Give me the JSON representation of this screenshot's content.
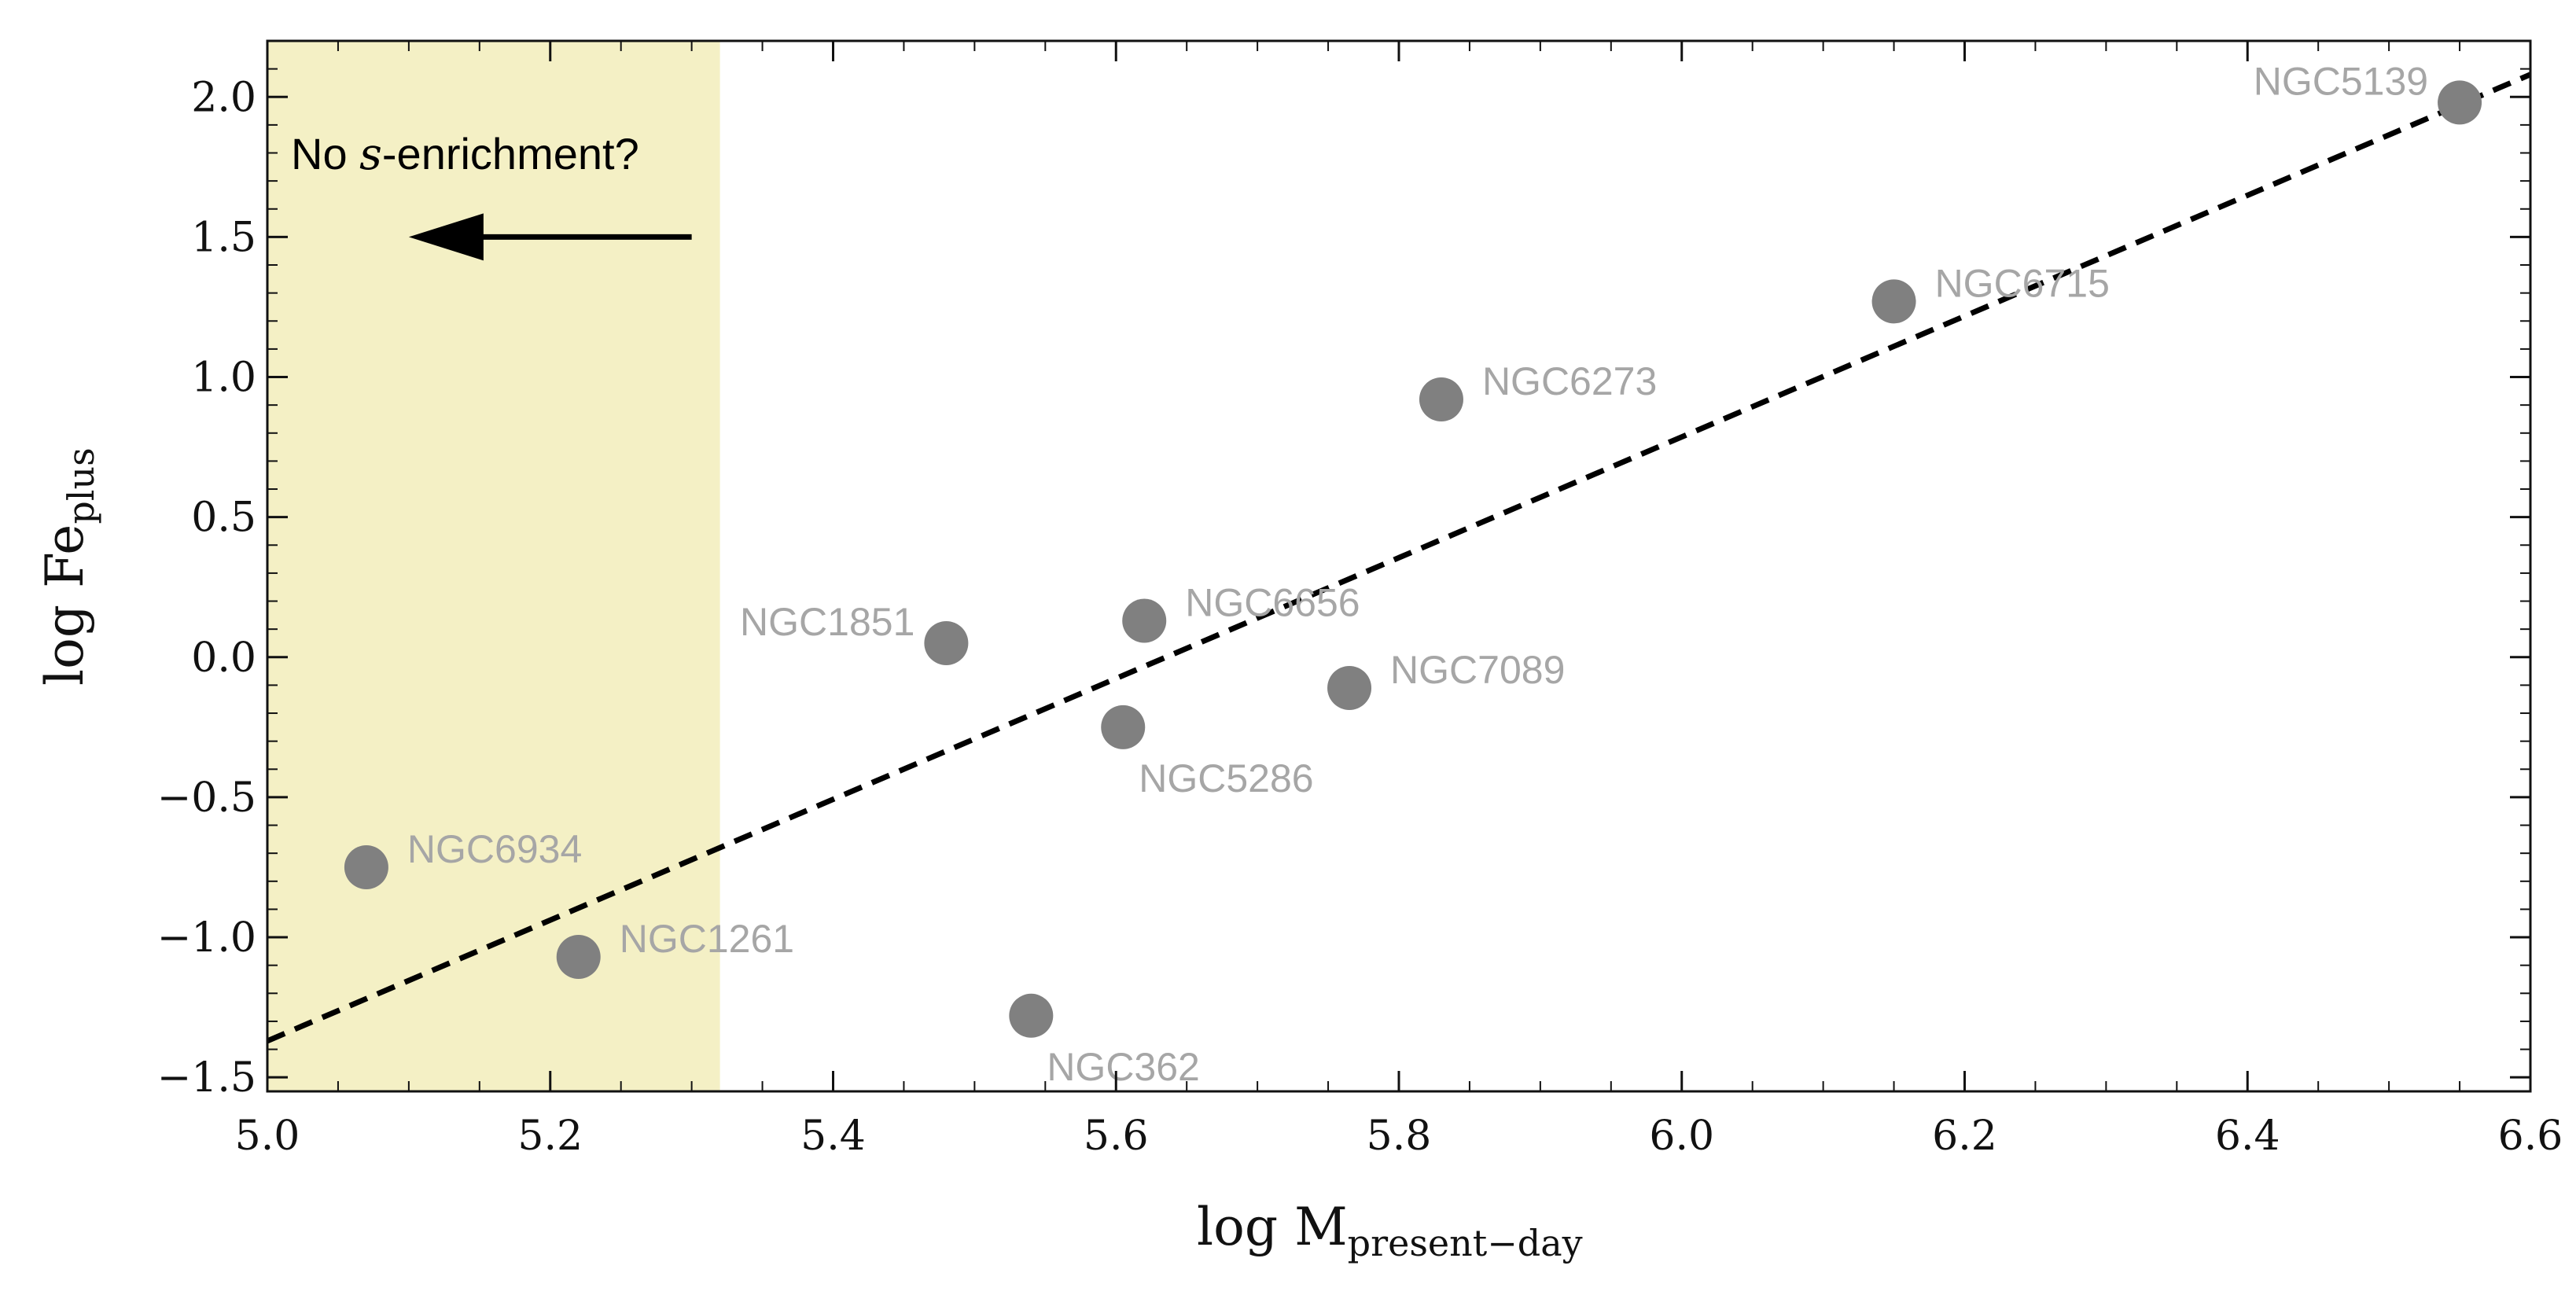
{
  "chart_data": {
    "type": "scatter",
    "title": "",
    "xlabel": {
      "main": "log M",
      "sub": "present−day"
    },
    "ylabel": {
      "main": "log Fe",
      "sub": "plus"
    },
    "xlim": [
      5.0,
      6.6
    ],
    "ylim": [
      -1.55,
      2.2
    ],
    "xticks": [
      5.0,
      5.2,
      5.4,
      5.6,
      5.8,
      6.0,
      6.2,
      6.4,
      6.6
    ],
    "yticks": [
      2.0,
      1.5,
      1.0,
      0.5,
      0.0,
      -0.5,
      -1.0,
      -1.5
    ],
    "xtick_labels": [
      "5.0",
      "5.2",
      "5.4",
      "5.6",
      "5.8",
      "6.0",
      "6.2",
      "6.4",
      "6.6"
    ],
    "ytick_labels": [
      "2.0",
      "1.5",
      "1.0",
      "0.5",
      "0.0",
      "−0.5",
      "−1.0",
      "−1.5"
    ],
    "points": [
      {
        "name": "NGC5139",
        "x": 6.55,
        "y": 1.98,
        "label_side": "left"
      },
      {
        "name": "NGC6715",
        "x": 6.15,
        "y": 1.27,
        "label_side": "right"
      },
      {
        "name": "NGC6273",
        "x": 5.83,
        "y": 0.92,
        "label_side": "right"
      },
      {
        "name": "NGC6656",
        "x": 5.62,
        "y": 0.13,
        "label_side": "right"
      },
      {
        "name": "NGC1851",
        "x": 5.48,
        "y": 0.05,
        "label_side": "left"
      },
      {
        "name": "NGC7089",
        "x": 5.765,
        "y": -0.11,
        "label_side": "right"
      },
      {
        "name": "NGC5286",
        "x": 5.605,
        "y": -0.25,
        "label_side": "below"
      },
      {
        "name": "NGC6934",
        "x": 5.07,
        "y": -0.75,
        "label_side": "right"
      },
      {
        "name": "NGC1261",
        "x": 5.22,
        "y": -1.07,
        "label_side": "right"
      },
      {
        "name": "NGC362",
        "x": 5.54,
        "y": -1.28,
        "label_side": "below"
      }
    ],
    "fit_line": {
      "style": "dashed",
      "x": [
        5.0,
        6.6
      ],
      "y": [
        -1.37,
        2.08
      ]
    },
    "shaded_region": {
      "x": [
        5.0,
        5.32
      ],
      "color": "#f4f0c5"
    },
    "annotation": {
      "text_before": "No ",
      "text_italic": "s",
      "text_after": "-enrichment?",
      "arrow_from": [
        5.3,
        1.5
      ],
      "arrow_to": [
        5.1,
        1.5
      ]
    },
    "colors": {
      "points": "#808080",
      "labels": "#a6a6a6",
      "line": "#000000"
    }
  }
}
